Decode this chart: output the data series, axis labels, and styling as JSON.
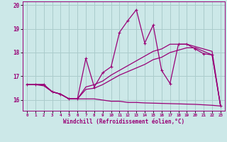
{
  "xlabel": "Windchill (Refroidissement éolien,°C)",
  "xlim": [
    -0.5,
    23.5
  ],
  "ylim": [
    15.55,
    20.15
  ],
  "yticks": [
    16,
    17,
    18,
    19,
    20
  ],
  "xticks": [
    0,
    1,
    2,
    3,
    4,
    5,
    6,
    7,
    8,
    9,
    10,
    11,
    12,
    13,
    14,
    15,
    16,
    17,
    18,
    19,
    20,
    21,
    22,
    23
  ],
  "background_color": "#cce8e8",
  "grid_color": "#aacccc",
  "line_color": "#990077",
  "line1_x": [
    0,
    1,
    2,
    3,
    4,
    5,
    6,
    7,
    8,
    9,
    10,
    11,
    12,
    13,
    14,
    15,
    16,
    17,
    18,
    19,
    20,
    21,
    22,
    23
  ],
  "line1_y": [
    16.65,
    16.65,
    16.65,
    16.35,
    16.25,
    16.05,
    16.05,
    17.75,
    16.55,
    17.15,
    17.4,
    18.85,
    19.35,
    19.8,
    18.4,
    19.15,
    17.25,
    16.7,
    18.35,
    18.35,
    18.15,
    17.95,
    17.9,
    15.75
  ],
  "line2_x": [
    0,
    1,
    2,
    3,
    4,
    5,
    6,
    7,
    8,
    9,
    10,
    11,
    12,
    13,
    14,
    15,
    16,
    17,
    18,
    19,
    20,
    21,
    22,
    23
  ],
  "line2_y": [
    16.65,
    16.65,
    16.65,
    16.35,
    16.25,
    16.05,
    16.05,
    16.55,
    16.65,
    16.8,
    17.05,
    17.25,
    17.45,
    17.65,
    17.85,
    18.05,
    18.15,
    18.35,
    18.35,
    18.35,
    18.25,
    18.15,
    18.05,
    15.75
  ],
  "line3_x": [
    0,
    1,
    2,
    3,
    4,
    5,
    6,
    7,
    8,
    9,
    10,
    11,
    12,
    13,
    14,
    15,
    16,
    17,
    18,
    19,
    20,
    21,
    22,
    23
  ],
  "line3_y": [
    16.65,
    16.65,
    16.65,
    16.35,
    16.25,
    16.05,
    16.05,
    16.45,
    16.5,
    16.65,
    16.85,
    17.05,
    17.2,
    17.35,
    17.5,
    17.7,
    17.8,
    18.0,
    18.1,
    18.2,
    18.2,
    18.05,
    17.9,
    15.75
  ],
  "line4_x": [
    0,
    1,
    2,
    3,
    4,
    5,
    6,
    7,
    8,
    9,
    10,
    11,
    12,
    13,
    14,
    15,
    16,
    17,
    18,
    19,
    20,
    21,
    22,
    23
  ],
  "line4_y": [
    16.65,
    16.65,
    16.6,
    16.35,
    16.25,
    16.05,
    16.05,
    16.05,
    16.05,
    16.0,
    15.95,
    15.95,
    15.9,
    15.9,
    15.88,
    15.87,
    15.86,
    15.85,
    15.84,
    15.83,
    15.82,
    15.8,
    15.78,
    15.75
  ]
}
